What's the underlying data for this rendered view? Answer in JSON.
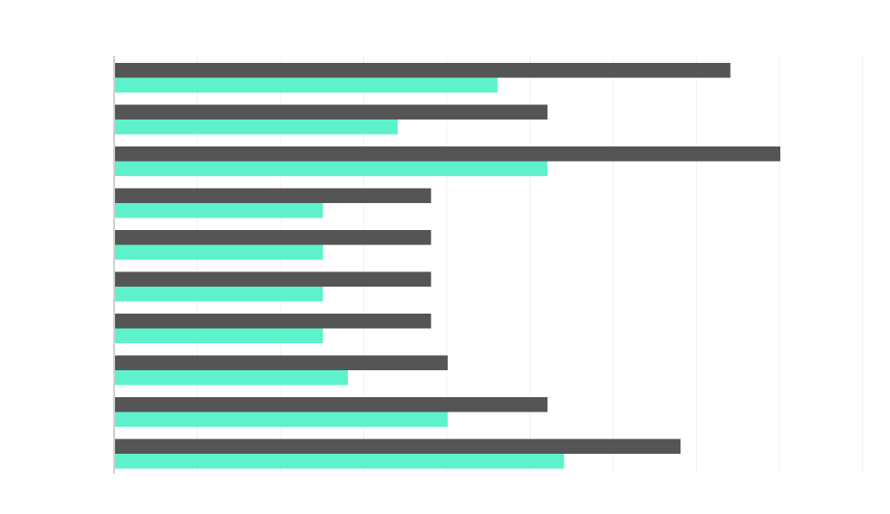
{
  "chart_data": {
    "type": "bar",
    "orientation": "horizontal",
    "title": "",
    "xlabel": "",
    "ylabel": "",
    "xlim": [
      0,
      45
    ],
    "grid": true,
    "legend": "none",
    "categories": [
      "",
      "",
      "",
      "",
      "",
      "",
      "",
      "",
      "",
      ""
    ],
    "series": [
      {
        "color": "#555555",
        "values": [
          37,
          26,
          40,
          19,
          19,
          19,
          19,
          20,
          26,
          34
        ]
      },
      {
        "color": "#5ef2cc",
        "values": [
          23,
          17,
          26,
          12.5,
          12.5,
          12.5,
          12.5,
          14,
          20,
          27
        ]
      }
    ]
  }
}
